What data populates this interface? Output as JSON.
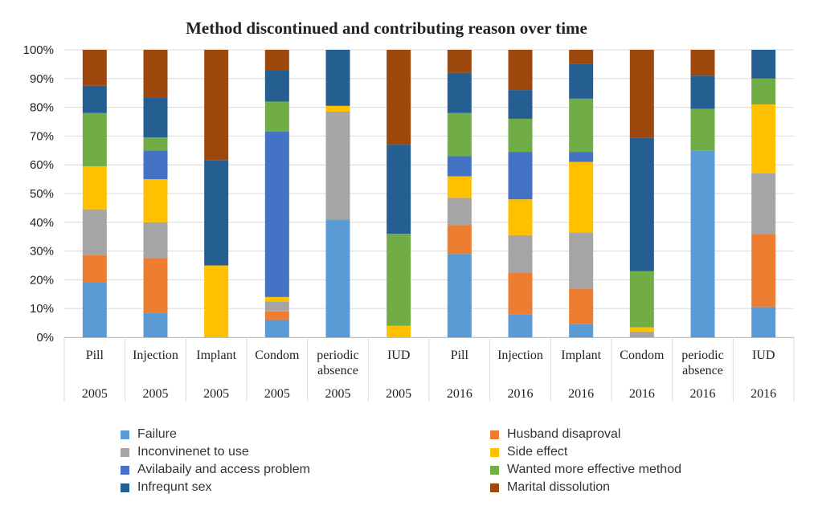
{
  "chart_data": {
    "type": "bar",
    "stacked": true,
    "title": "Method discontinued  and  contributing   reason over time",
    "y_ticks": [
      "0%",
      "10%",
      "20%",
      "30%",
      "40%",
      "50%",
      "60%",
      "70%",
      "80%",
      "90%",
      "100%"
    ],
    "ylim": [
      0,
      100
    ],
    "grid": true,
    "categories": [
      {
        "label": [
          "Pill"
        ],
        "year": "2005"
      },
      {
        "label": [
          "Injection"
        ],
        "year": "2005"
      },
      {
        "label": [
          "Implant"
        ],
        "year": "2005"
      },
      {
        "label": [
          "Condom"
        ],
        "year": "2005"
      },
      {
        "label": [
          "periodic",
          "absence"
        ],
        "year": "2005"
      },
      {
        "label": [
          "IUD"
        ],
        "year": "2005"
      },
      {
        "label": [
          "Pill"
        ],
        "year": "2016"
      },
      {
        "label": [
          "Injection"
        ],
        "year": "2016"
      },
      {
        "label": [
          "Implant"
        ],
        "year": "2016"
      },
      {
        "label": [
          "Condom"
        ],
        "year": "2016"
      },
      {
        "label": [
          "periodic",
          "absence"
        ],
        "year": "2016"
      },
      {
        "label": [
          "IUD"
        ],
        "year": "2016"
      }
    ],
    "series": [
      {
        "name": "Failure",
        "color": "#5b9bd5",
        "values": [
          19,
          8.5,
          0,
          6,
          41,
          0,
          29,
          8,
          4.5,
          0,
          65,
          10.5
        ]
      },
      {
        "name": "Husband disaproval",
        "color": "#ed7d31",
        "values": [
          9.5,
          19,
          0,
          3,
          0,
          0,
          10,
          14.5,
          12.5,
          0,
          0,
          25.5
        ]
      },
      {
        "name": "Inconvinenet to use",
        "color": "#a5a5a5",
        "values": [
          16,
          12.5,
          0,
          3.5,
          37.5,
          0,
          9.5,
          13,
          19.5,
          2,
          0,
          21
        ]
      },
      {
        "name": "Side effect",
        "color": "#ffc000",
        "values": [
          15,
          15,
          25,
          1.5,
          2,
          4,
          7.5,
          12.5,
          24.5,
          1.5,
          0,
          24
        ]
      },
      {
        "name": "Avilabaily and access problem",
        "color": "#4472c4",
        "values": [
          0,
          10,
          0,
          57.5,
          0,
          0,
          7,
          16.5,
          3.5,
          0,
          0,
          0
        ]
      },
      {
        "name": "Wanted more effective method",
        "color": "#70ad47",
        "values": [
          18.5,
          4.5,
          0,
          10.5,
          0,
          32,
          15,
          11.5,
          18.5,
          19.5,
          14.5,
          9
        ]
      },
      {
        "name": "Infrequnt sex",
        "color": "#255e91",
        "values": [
          9.5,
          14,
          36.5,
          11,
          19.5,
          31,
          14,
          10,
          12,
          46.5,
          11.5,
          10
        ]
      },
      {
        "name": "Marital dissolution",
        "color": "#9e480e",
        "values": [
          12.5,
          16.5,
          38.5,
          7,
          0,
          33,
          8,
          14,
          5,
          30.5,
          9,
          0
        ]
      }
    ],
    "legend": {
      "placement": "bottom",
      "entries": [
        "Failure",
        "Husband disaproval",
        "Inconvinenet to use",
        "Side effect",
        "Avilabaily and access problem",
        "Wanted more effective method",
        "Infrequnt sex",
        "Marital dissolution"
      ]
    }
  }
}
